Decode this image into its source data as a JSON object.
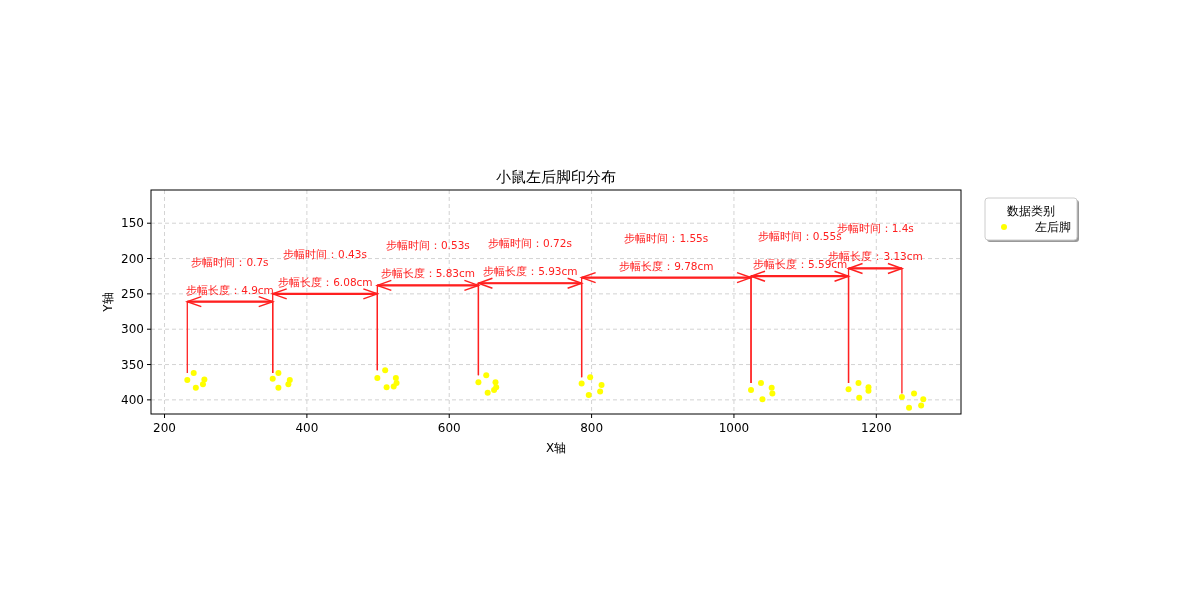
{
  "chart_data": {
    "type": "scatter",
    "title": "小鼠左后脚印分布",
    "xlabel": "X轴",
    "ylabel": "Y轴",
    "legend_title": "数据类别",
    "legend": "top right",
    "grid": true,
    "marker": "circle",
    "xlim": [
      181,
      1319
    ],
    "ylim": [
      420,
      103
    ],
    "xticks": [
      200,
      400,
      600,
      800,
      1000,
      1200
    ],
    "yticks": [
      150,
      200,
      250,
      300,
      350,
      400
    ],
    "series": [
      {
        "name": "左后脚",
        "color": "#ffff00",
        "x": [
          232,
          241,
          256,
          254,
          244,
          352,
          360,
          376,
          374,
          360,
          499,
          510,
          525,
          526,
          522,
          512,
          641,
          652,
          665,
          666,
          663,
          654,
          786,
          798,
          814,
          812,
          796,
          1024,
          1038,
          1053,
          1054,
          1040,
          1161,
          1175,
          1189,
          1189,
          1176,
          1236,
          1253,
          1266,
          1263,
          1246
        ],
        "values": [
          372,
          362,
          371,
          378,
          383,
          370,
          362,
          372,
          378,
          383,
          369,
          358,
          369,
          376,
          381,
          382,
          375,
          365,
          375,
          382,
          386,
          390,
          377,
          368,
          379,
          388,
          393,
          386,
          376,
          383,
          391,
          399,
          385,
          376,
          382,
          387,
          397,
          396,
          391,
          399,
          408,
          411
        ]
      },
      {
        "type": "line",
        "marker": "none",
        "color": "#ff2020",
        "x": [
          232,
          232,
          352,
          352
        ],
        "values": [
          362,
          261,
          261,
          362
        ]
      },
      {
        "type": "line",
        "marker": "none",
        "color": "#ff2020",
        "x": [
          352,
          352,
          499,
          499
        ],
        "values": [
          362,
          250,
          250,
          358
        ]
      },
      {
        "type": "line",
        "marker": "none",
        "color": "#ff2020",
        "x": [
          499,
          499,
          641,
          641
        ],
        "values": [
          358,
          238,
          238,
          365
        ]
      },
      {
        "type": "line",
        "marker": "none",
        "color": "#ff2020",
        "x": [
          641,
          641,
          786,
          786
        ],
        "values": [
          365,
          235,
          235,
          368
        ]
      },
      {
        "type": "line",
        "marker": "none",
        "color": "#ff2020",
        "x": [
          786,
          786,
          1024,
          1024
        ],
        "values": [
          368,
          227,
          227,
          376
        ]
      },
      {
        "type": "line",
        "marker": "none",
        "color": "#ff2020",
        "x": [
          1024,
          1024,
          1161,
          1161
        ],
        "values": [
          376,
          225,
          225,
          376
        ]
      },
      {
        "type": "line",
        "marker": "none",
        "color": "#ff2020",
        "x": [
          1161,
          1161,
          1236,
          1236
        ],
        "values": [
          376,
          214,
          214,
          391
        ]
      }
    ],
    "annotations": [
      {
        "text": "步幅长度：4.9cm",
        "x": 292,
        "y": 261
      },
      "步幅时间：0.7s",
      {
        "text": "步幅长度：6.08cm",
        "x": 426,
        "y": 250
      },
      "步幅时间：0.43s",
      {
        "text": "步幅长度：5.83cm",
        "x": 570,
        "y": 238
      },
      "步幅时间：0.53s",
      {
        "text": "步幅长度：5.93cm",
        "x": 714,
        "y": 235
      },
      "步幅时间：0.72s",
      {
        "text": "步幅长度：9.78cm",
        "x": 905,
        "y": 227
      },
      "步幅时间：1.55s",
      {
        "text": "步幅长度：5.59cm",
        "x": 1093,
        "y": 225
      },
      "步幅时间：0.55s",
      {
        "text": "步幅长度：3.13cm",
        "x": 1199,
        "y": 214
      },
      "步幅时间：1.4s"
    ]
  }
}
